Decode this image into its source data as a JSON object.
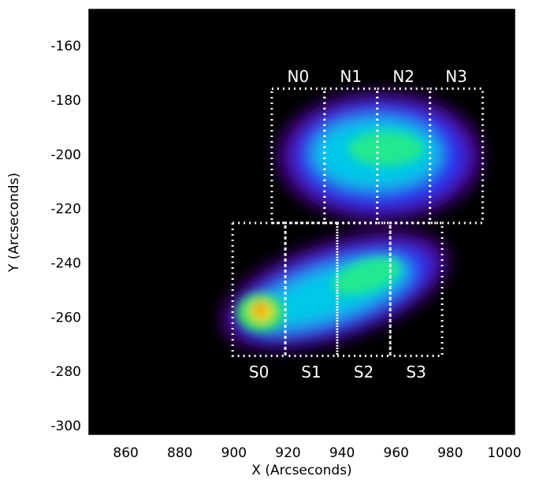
{
  "chart_data": {
    "type": "image",
    "xlabel": "X (Arcseconds)",
    "ylabel": "Y (Arcseconds)",
    "xlim": [
      846.4,
      1003.8
    ],
    "ylim": [
      -302.9,
      -146.3
    ],
    "xticks": [
      860,
      880,
      900,
      920,
      940,
      960,
      980,
      1000
    ],
    "yticks": [
      -300,
      -280,
      -260,
      -240,
      -220,
      -200,
      -180,
      -160
    ],
    "regions": [
      {
        "label": "N0",
        "x": [
          914,
          933.5
        ],
        "y": [
          -225,
          -175.5
        ]
      },
      {
        "label": "N1",
        "x": [
          933.5,
          953
        ],
        "y": [
          -225,
          -175.5
        ]
      },
      {
        "label": "N2",
        "x": [
          953,
          972.5
        ],
        "y": [
          -225,
          -175.5
        ]
      },
      {
        "label": "N3",
        "x": [
          972.5,
          992
        ],
        "y": [
          -225,
          -175.5
        ]
      },
      {
        "label": "S0",
        "x": [
          899.5,
          919
        ],
        "y": [
          -274,
          -225
        ]
      },
      {
        "label": "S1",
        "x": [
          919,
          938.2
        ],
        "y": [
          -274,
          -225
        ]
      },
      {
        "label": "S2",
        "x": [
          938.2,
          957.8
        ],
        "y": [
          -274,
          -225
        ]
      },
      {
        "label": "S3",
        "x": [
          957.8,
          977
        ],
        "y": [
          -274,
          -225
        ]
      }
    ]
  }
}
